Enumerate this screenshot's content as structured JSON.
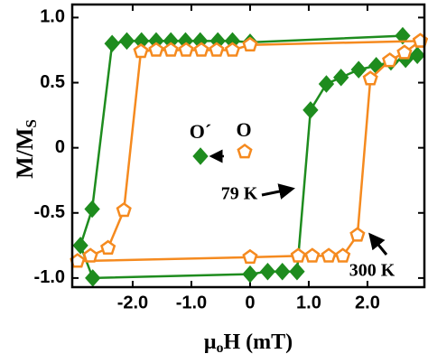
{
  "chart_data": {
    "type": "line",
    "x_label": "μ",
    "x_label_sub": "o",
    "x_label_rest": "H (mT)",
    "y_label": "M/M",
    "y_label_sub": "S",
    "xlim": [
      -3.03,
      2.97
    ],
    "ylim": [
      -1.07,
      1.1
    ],
    "xticks": [
      {
        "value": -2,
        "label": "-2.0"
      },
      {
        "value": -1,
        "label": "-1.0"
      },
      0,
      {
        "value": 1,
        "label": "1.0"
      },
      {
        "value": 2,
        "label": "2.0"
      }
    ],
    "yticks": [
      {
        "value": 1,
        "label": "1.0"
      },
      0.5,
      0,
      -0.5,
      {
        "value": -1,
        "label": "-1.0"
      }
    ],
    "series": [
      {
        "name": "O´",
        "color": "#1e8c1e",
        "marker": "diamond",
        "x": [
          2.6,
          0.0,
          -0.3,
          -0.55,
          -0.85,
          -1.1,
          -1.35,
          -1.6,
          -1.85,
          -2.1,
          -2.35,
          -2.69,
          -2.89,
          -2.68,
          0.0,
          0.3,
          0.55,
          0.8,
          1.03,
          1.3,
          1.55,
          1.85,
          2.15,
          2.4,
          2.65,
          2.85
        ],
        "values": [
          0.86,
          0.81,
          0.82,
          0.82,
          0.82,
          0.82,
          0.82,
          0.82,
          0.82,
          0.82,
          0.8,
          -0.47,
          -0.75,
          -1.0,
          -0.97,
          -0.95,
          -0.95,
          -0.95,
          0.29,
          0.49,
          0.54,
          0.6,
          0.63,
          0.66,
          0.68,
          0.71
        ]
      },
      {
        "name": "O",
        "color": "#f58a1f",
        "marker": "pentagon",
        "x": [
          2.9,
          0.0,
          -0.3,
          -0.57,
          -0.83,
          -1.09,
          -1.35,
          -1.6,
          -1.86,
          -2.15,
          -2.42,
          -2.72,
          -2.94,
          0.0,
          0.82,
          1.06,
          1.34,
          1.58,
          1.83,
          2.05,
          2.38,
          2.63,
          2.9
        ],
        "values": [
          0.82,
          0.79,
          0.75,
          0.75,
          0.75,
          0.75,
          0.75,
          0.75,
          0.74,
          -0.48,
          -0.77,
          -0.83,
          -0.87,
          -0.84,
          -0.83,
          -0.83,
          -0.83,
          -0.83,
          -0.67,
          0.53,
          0.67,
          0.73,
          0.82
        ]
      }
    ],
    "annotations": [
      "79 K",
      "300 K"
    ]
  }
}
